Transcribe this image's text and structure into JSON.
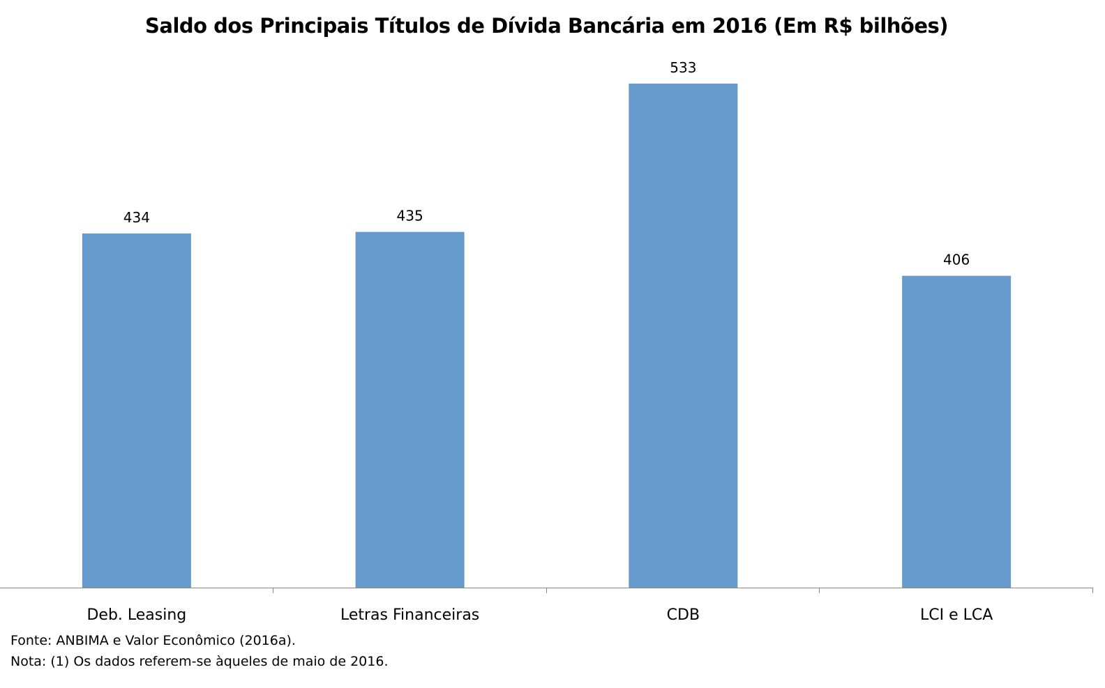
{
  "chart_data": {
    "type": "bar",
    "title": "Saldo dos Principais Títulos de Dívida Bancária em 2016 (Em R$ bilhões)",
    "categories": [
      "Deb. Leasing",
      "Letras Financeiras",
      "CDB",
      "LCI e  LCA"
    ],
    "values": [
      434,
      435,
      533,
      406
    ],
    "xlabel": "",
    "ylabel": "",
    "ylim": [
      200,
      550
    ],
    "grid": false,
    "bar_color": "#6699CC"
  },
  "notes": {
    "source": "Fonte: ANBIMA e Valor Econômico (2016a).",
    "note": "Nota: (1) Os dados referem-se àqueles de maio de 2016."
  }
}
